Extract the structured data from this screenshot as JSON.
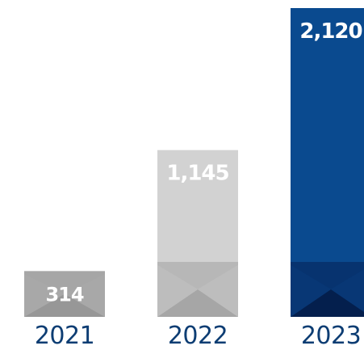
{
  "chart_data": {
    "type": "bar",
    "categories": [
      "2021",
      "2022",
      "2023"
    ],
    "values": [
      314,
      1145,
      2120
    ],
    "value_labels": [
      "314",
      "1,145",
      "2,120"
    ],
    "title": "",
    "xlabel": "",
    "ylabel": "",
    "ylim": [
      0,
      2120
    ],
    "grid": false,
    "legend": "none",
    "bar_colors": [
      "#b4b4b4",
      "#d2d2d2",
      "#0a4a8f"
    ],
    "bar_fold_colors": {
      "2021": {
        "top": "#a3a3a3",
        "bottom": "#979797"
      },
      "2022": {
        "top": "#b3b3b3",
        "bottom": "#a6a6a6"
      },
      "2023": {
        "top": "#072f6a",
        "bottom": "#041f4d"
      }
    },
    "value_label_color": "#ffffff",
    "tick_label_color": "#0d3d73"
  }
}
